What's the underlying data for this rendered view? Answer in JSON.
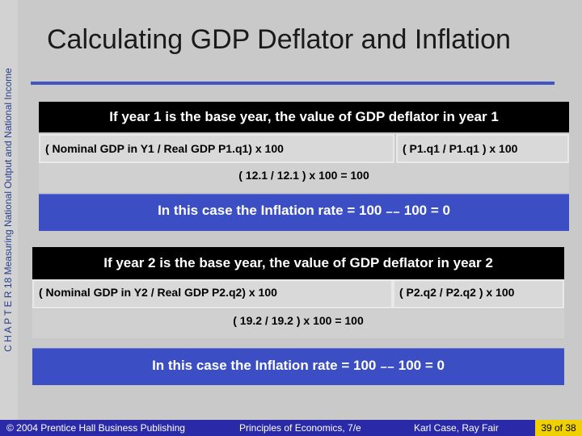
{
  "sidebar": {
    "text": "C H A P T E R 18 Measuring National Output and National Income"
  },
  "slide": {
    "title": "Calculating GDP Deflator and Inflation"
  },
  "section1": {
    "header": "If year 1 is the base year, the value of GDP deflator in year 1",
    "formula_left": "( Nominal GDP in Y1 / Real GDP P1.q1) x 100",
    "formula_right": "( P1.q1 / P1.q1 ) x 100",
    "result": "( 12.1 / 12.1 ) x 100 = 100",
    "inflation": "In this case the Inflation rate = 100 ₋₋ 100 = 0"
  },
  "section2": {
    "header": "If year 2 is the base year, the value of GDP deflator in year 2",
    "formula_left": "( Nominal GDP in Y2 / Real GDP P2.q2) x 100",
    "formula_right": "( P2.q2 / P2.q2 ) x 100",
    "result": "( 19.2 / 19.2 ) x 100 = 100",
    "inflation": "In this case the Inflation rate = 100 ₋₋ 100 = 0"
  },
  "footer": {
    "copyright": "© 2004 Prentice Hall Business Publishing",
    "book": "Principles of Economics, 7/e",
    "authors": "Karl Case, Ray Fair",
    "page": "39 of 38"
  },
  "colors": {
    "accent": "#3b4ec3",
    "footer_bg": "#2a2aa8",
    "page_badge": "#f0d000"
  }
}
